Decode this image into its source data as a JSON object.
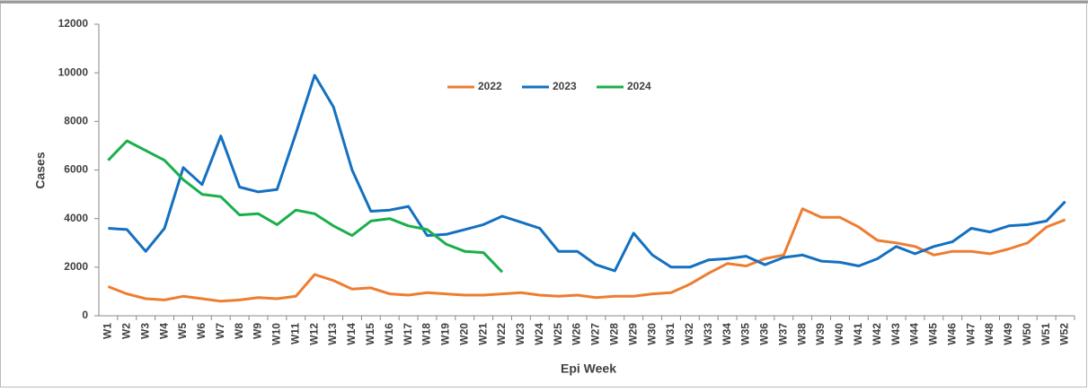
{
  "chart_data": {
    "type": "line",
    "x_label": "Epi Week",
    "y_label": "Cases",
    "categories": [
      "W1",
      "W2",
      "W3",
      "W4",
      "W5",
      "W6",
      "W7",
      "W8",
      "W9",
      "W10",
      "W11",
      "W12",
      "W13",
      "W14",
      "W15",
      "W16",
      "W17",
      "W18",
      "W19",
      "W20",
      "W21",
      "W22",
      "W23",
      "W24",
      "W25",
      "W26",
      "W27",
      "W28",
      "W29",
      "W30",
      "W31",
      "W32",
      "W33",
      "W34",
      "W35",
      "W36",
      "W37",
      "W38",
      "W39",
      "W40",
      "W41",
      "W42",
      "W43",
      "W44",
      "W45",
      "W46",
      "W47",
      "W48",
      "W49",
      "W50",
      "W51",
      "W52"
    ],
    "series": [
      {
        "name": "2022",
        "color": "#ed7d31",
        "values": [
          1200,
          900,
          700,
          650,
          800,
          700,
          600,
          650,
          750,
          700,
          800,
          1700,
          1450,
          1100,
          1150,
          900,
          850,
          950,
          900,
          850,
          850,
          900,
          950,
          850,
          800,
          850,
          750,
          800,
          800,
          900,
          950,
          1300,
          1750,
          2150,
          2050,
          2350,
          2500,
          4400,
          4050,
          4050,
          3650,
          3100,
          3000,
          2850,
          2500,
          2650,
          2650,
          2550,
          2750,
          3000,
          3650,
          3950
        ]
      },
      {
        "name": "2023",
        "color": "#1470c0",
        "values": [
          3600,
          3550,
          2650,
          3600,
          6100,
          5400,
          7400,
          5300,
          5100,
          5200,
          7500,
          9900,
          8600,
          6000,
          4300,
          4350,
          4500,
          3300,
          3350,
          3550,
          3750,
          4100,
          3850,
          3600,
          2650,
          2650,
          2100,
          1850,
          3400,
          2500,
          2000,
          2000,
          2300,
          2350,
          2450,
          2100,
          2400,
          2500,
          2250,
          2200,
          2050,
          2350,
          2850,
          2550,
          2850,
          3050,
          3600,
          3450,
          3700,
          3750,
          3900,
          4700
        ]
      },
      {
        "name": "2024",
        "color": "#1aaf4b",
        "values": [
          6400,
          7200,
          6800,
          6400,
          5600,
          5000,
          4900,
          4150,
          4200,
          3750,
          4350,
          4200,
          3700,
          3300,
          3900,
          4000,
          3700,
          3550,
          2950,
          2650,
          2600,
          1800,
          null,
          null,
          null,
          null,
          null,
          null,
          null,
          null,
          null,
          null,
          null,
          null,
          null,
          null,
          null,
          null,
          null,
          null,
          null,
          null,
          null,
          null,
          null,
          null,
          null,
          null,
          null,
          null,
          null,
          null
        ]
      }
    ],
    "ylim": [
      0,
      12000
    ],
    "yticks": [
      0,
      2000,
      4000,
      6000,
      8000,
      10000,
      12000
    ],
    "grid": false,
    "legend": "top"
  }
}
